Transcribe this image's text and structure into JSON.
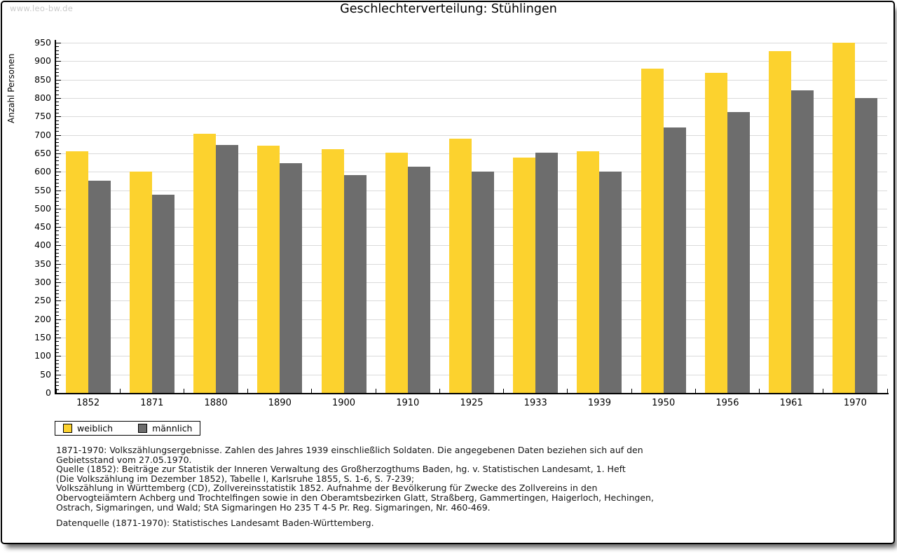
{
  "watermark": "www.leo-bw.de",
  "title": "Geschlechterverteilung: Stühlingen",
  "chart_data": {
    "type": "bar",
    "title": "Geschlechterverteilung: Stühlingen",
    "xlabel": "",
    "ylabel": "Anzahl Personen",
    "ylim": [
      0,
      950
    ],
    "ytick_step": 50,
    "ytick_minor_step": 10,
    "grid": true,
    "legend_position": "bottom-left",
    "categories": [
      "1852",
      "1871",
      "1880",
      "1890",
      "1900",
      "1910",
      "1925",
      "1933",
      "1939",
      "1950",
      "1956",
      "1961",
      "1970"
    ],
    "series": [
      {
        "name": "weiblich",
        "color": "#fcd22e",
        "values": [
          655,
          600,
          703,
          670,
          661,
          651,
          690,
          639,
          656,
          880,
          869,
          928,
          950
        ]
      },
      {
        "name": "männlich",
        "color": "#6d6d6d",
        "values": [
          576,
          537,
          672,
          623,
          590,
          614,
          601,
          651,
          601,
          721,
          762,
          820,
          800
        ]
      }
    ]
  },
  "footnotes": {
    "lines": [
      "1871-1970: Volkszählungsergebnisse. Zahlen des Jahres 1939 einschließlich Soldaten. Die angegebenen Daten beziehen sich auf den",
      "Gebietsstand vom 27.05.1970.",
      "Quelle (1852): Beiträge zur Statistik der Inneren Verwaltung des Großherzogthums Baden, hg. v. Statistischen Landesamt, 1. Heft",
      "(Die Volkszählung im Dezember 1852), Tabelle I, Karlsruhe 1855, S. 1-6, S. 7-239;",
      "Volkszählung in Württemberg (CD), Zollvereinsstatistik 1852. Aufnahme der Bevölkerung für Zwecke des Zollvereins in den",
      "Obervogteiämtern Achberg und Trochtelfingen sowie in den Oberamtsbezirken Glatt, Straßberg, Gammertingen, Haigerloch, Hechingen,",
      "Ostrach, Sigmaringen, und Wald; StA Sigmaringen Ho 235 T 4-5 Pr. Reg. Sigmaringen, Nr. 460-469."
    ],
    "source_line": "Datenquelle (1871-1970): Statistisches Landesamt Baden-Württemberg."
  }
}
